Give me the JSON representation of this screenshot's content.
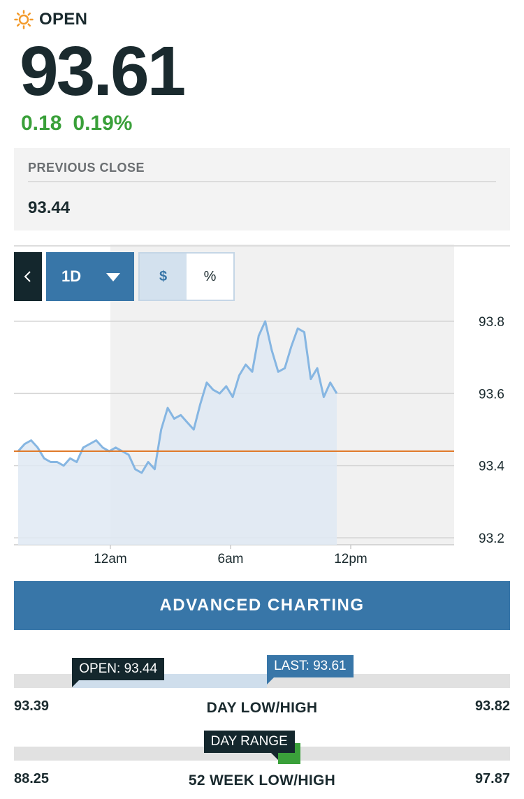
{
  "status": {
    "label": "OPEN",
    "icon": "sun-icon",
    "icon_color": "#f39a2a"
  },
  "quote": {
    "price": "93.61",
    "change": "0.18",
    "change_pct": "0.19%",
    "change_color": "#3aa03a"
  },
  "previous_close": {
    "label": "PREVIOUS CLOSE",
    "value": "93.44"
  },
  "chart_controls": {
    "back_icon": "chevron-left-icon",
    "period": "1D",
    "toggle_dollar": "$",
    "toggle_percent": "%",
    "active_toggle": "$"
  },
  "chart_data": {
    "type": "area",
    "x_ticks": [
      "12am",
      "6am",
      "12pm"
    ],
    "y_ticks": [
      "93.8",
      "93.6",
      "93.4",
      "93.2"
    ],
    "ylim": [
      93.2,
      93.8
    ],
    "reference_line": {
      "value": 93.44,
      "color": "#e07a2a"
    },
    "series_color": "#86b6e2",
    "fill_color": "#dfe9f3",
    "x": [
      "7:00pm",
      "7:20pm",
      "7:40pm",
      "8:00pm",
      "8:20pm",
      "8:40pm",
      "9:00pm",
      "9:20pm",
      "9:40pm",
      "10:00pm",
      "10:20pm",
      "10:40pm",
      "11:00pm",
      "11:20pm",
      "11:40pm",
      "12:00am",
      "12:20am",
      "12:40am",
      "1:00am",
      "1:20am",
      "1:40am",
      "2:00am",
      "2:20am",
      "2:40am",
      "3:00am",
      "3:20am",
      "3:40am",
      "4:00am",
      "4:20am",
      "4:40am",
      "5:00am",
      "5:20am",
      "5:40am",
      "6:00am",
      "6:20am",
      "6:40am",
      "7:00am",
      "7:20am",
      "7:40am",
      "8:00am",
      "8:20am",
      "8:40am",
      "9:00am",
      "9:20am",
      "9:40am",
      "10:00am",
      "10:20am",
      "10:40am",
      "11:00am",
      "11:20am"
    ],
    "values": [
      93.44,
      93.46,
      93.47,
      93.45,
      93.42,
      93.41,
      93.41,
      93.4,
      93.42,
      93.41,
      93.45,
      93.46,
      93.47,
      93.45,
      93.44,
      93.45,
      93.44,
      93.43,
      93.39,
      93.38,
      93.41,
      93.39,
      93.5,
      93.56,
      93.53,
      93.54,
      93.52,
      93.5,
      93.57,
      93.63,
      93.61,
      93.6,
      93.62,
      93.59,
      93.65,
      93.68,
      93.66,
      93.76,
      93.8,
      93.72,
      93.66,
      93.67,
      93.73,
      93.78,
      93.77,
      93.64,
      93.67,
      93.59,
      93.63,
      93.6
    ]
  },
  "advanced_charting": {
    "label": "ADVANCED CHARTING"
  },
  "day_range": {
    "title": "DAY LOW/HIGH",
    "low": "93.39",
    "high": "93.82",
    "open_label": "OPEN: 93.44",
    "last_label": "LAST: 93.61",
    "open_fraction": 0.12,
    "last_fraction": 0.51
  },
  "week52_range": {
    "title": "52 WEEK LOW/HIGH",
    "low": "88.25",
    "high": "97.87",
    "day_range_label": "DAY RANGE",
    "marker_fraction": 0.56,
    "marker_color": "#3aa03a"
  }
}
